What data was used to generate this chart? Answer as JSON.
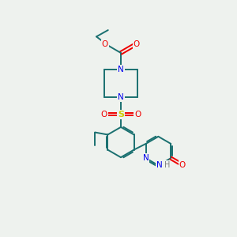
{
  "background_color": "#eef2ee",
  "bond_color": "#1a7070",
  "atom_colors": {
    "N": "#0000ee",
    "O": "#ee0000",
    "S": "#cccc00",
    "H": "#808080",
    "C": "#1a7070"
  },
  "figsize": [
    3.0,
    3.0
  ],
  "dpi": 100
}
